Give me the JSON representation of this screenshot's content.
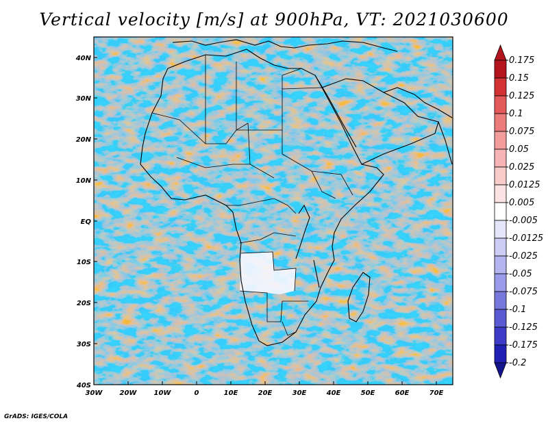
{
  "title": "Vertical velocity [m/s] at 900hPa, VT: 2021030600",
  "credit": "GrADS: IGES/COLA",
  "lat_ticks": [
    "40N",
    "30N",
    "20N",
    "10N",
    "EQ",
    "10S",
    "20S",
    "30S",
    "40S"
  ],
  "lon_ticks": [
    "30W",
    "20W",
    "10W",
    "0",
    "10E",
    "20E",
    "30E",
    "40E",
    "50E",
    "60E",
    "70E"
  ],
  "colorbar": {
    "labels": [
      "0.175",
      "0.15",
      "0.125",
      "0.1",
      "0.075",
      "0.05",
      "0.025",
      "0.0125",
      "0.005",
      "-0.005",
      "-0.0125",
      "-0.025",
      "-0.05",
      "-0.075",
      "-0.1",
      "-0.125",
      "-0.175",
      "-0.2"
    ],
    "colors": [
      "#b4141e",
      "#d23232",
      "#e45a5a",
      "#ec7b7b",
      "#f29c9c",
      "#f6b4b4",
      "#f9cccc",
      "#fce2e2",
      "#ffffff",
      "#e6e6fa",
      "#ccccf5",
      "#b4b4f0",
      "#9a9aeb",
      "#7878dc",
      "#5a5ad2",
      "#3c3cc8",
      "#2020b4",
      "#14148c"
    ]
  }
}
